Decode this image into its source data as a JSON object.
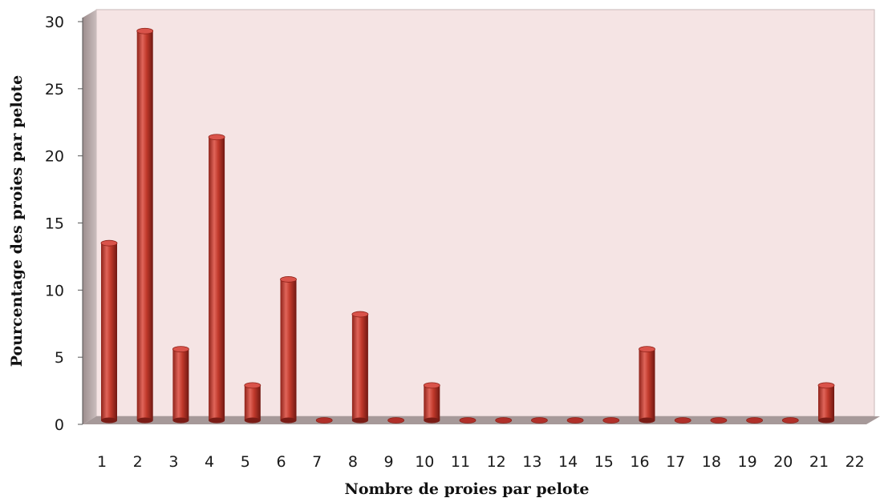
{
  "chart_data": {
    "type": "bar",
    "title": "",
    "xlabel": "Nombre de proies par pelote",
    "ylabel": "Pourcentage des proies par pelote",
    "ylim": [
      0,
      30
    ],
    "yticks": [
      0,
      5,
      10,
      15,
      20,
      25,
      30
    ],
    "categories": [
      "1",
      "2",
      "3",
      "4",
      "5",
      "6",
      "7",
      "8",
      "9",
      "10",
      "11",
      "12",
      "13",
      "14",
      "15",
      "16",
      "17",
      "18",
      "19",
      "20",
      "21",
      "22"
    ],
    "values": [
      13.2,
      29,
      5.3,
      21.1,
      2.6,
      10.5,
      0,
      7.9,
      0,
      2.6,
      0,
      0,
      0,
      0,
      0,
      5.3,
      0,
      0,
      0,
      0,
      2.6,
      null
    ],
    "grid": false,
    "legend": "none"
  },
  "colors": {
    "plot_background": "#f5e4e4",
    "side_wall": "#b3a6a6",
    "floor": "#a69999",
    "bar": "#c0392b",
    "bar_dark": "#7a1c16",
    "bar_light": "#e8786e"
  }
}
